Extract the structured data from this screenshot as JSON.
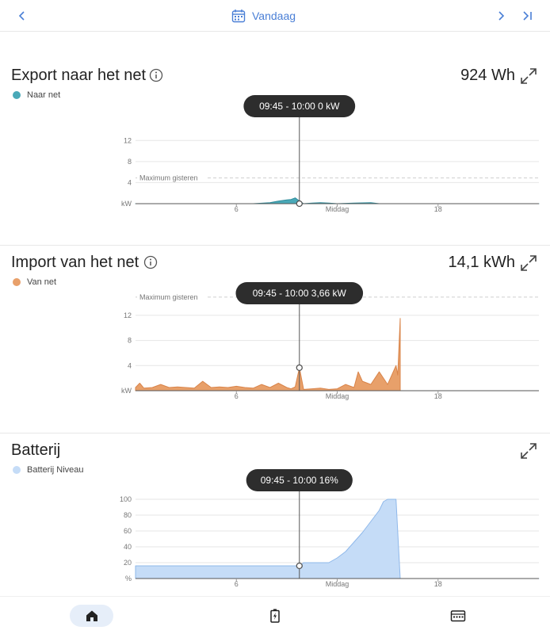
{
  "header": {
    "date_label": "Vandaag",
    "prev_icon": "chevron-left-icon",
    "next_icon": "chevron-right-icon",
    "last_icon": "skip-to-end-icon",
    "calendar_icon": "calendar-icon"
  },
  "colors": {
    "accent": "#4a7fd6",
    "export": "#4aa9b8",
    "import": "#e8a06a",
    "battery": "#c5dcf7"
  },
  "cards": {
    "export": {
      "title": "Export naar het net",
      "value": "924 Wh",
      "legend": "Naar net",
      "tooltip": "09:45 - 10:00 0 kW",
      "max_label": "Maximum gisteren"
    },
    "import": {
      "title": "Import van het net",
      "value": "14,1 kWh",
      "legend": "Van net",
      "tooltip": "09:45 - 10:00 3,66 kW",
      "max_label": "Maximum gisteren"
    },
    "battery": {
      "title": "Batterij",
      "legend": "Batterij Niveau",
      "tooltip": "09:45 - 10:00 16%"
    }
  },
  "chart_data": [
    {
      "type": "area",
      "series": [
        {
          "name": "Naar net",
          "x": [
            0,
            7,
            8,
            8.5,
            9,
            9.25,
            9.5,
            9.75,
            10,
            10.5,
            11,
            11.5,
            12,
            13,
            14,
            14.5,
            15,
            24
          ],
          "values": [
            0,
            0,
            0.2,
            0.5,
            0.7,
            0.8,
            1.1,
            0.5,
            0,
            0.1,
            0.2,
            0.1,
            0,
            0.1,
            0.2,
            0,
            0,
            0
          ]
        }
      ],
      "xticks": [
        "6",
        "Middag",
        "18"
      ],
      "yticks": [
        "kW",
        "4",
        "8",
        "12"
      ],
      "ylim": [
        0,
        14
      ],
      "reference": 4.9,
      "marker": {
        "x": 9.75,
        "y": 0
      }
    },
    {
      "type": "area",
      "series": [
        {
          "name": "Van net",
          "x": [
            0,
            0.25,
            0.5,
            1,
            1.5,
            2,
            2.5,
            3,
            3.5,
            4,
            4.5,
            5,
            5.5,
            6,
            6.5,
            7,
            7.5,
            8,
            8.5,
            9,
            9.25,
            9.5,
            9.75,
            10,
            10.5,
            11,
            11.5,
            12,
            12.5,
            13,
            13.25,
            13.5,
            14,
            14.5,
            14.75,
            15,
            15.25,
            15.5,
            15.6,
            15.75
          ],
          "values": [
            0.5,
            1.2,
            0.4,
            0.5,
            1.0,
            0.5,
            0.6,
            0.5,
            0.4,
            1.5,
            0.5,
            0.6,
            0.5,
            0.7,
            0.5,
            0.4,
            1.0,
            0.5,
            1.2,
            0.5,
            0.3,
            0.6,
            3.66,
            0.2,
            0.3,
            0.4,
            0.2,
            0.3,
            1.0,
            0.5,
            3.0,
            1.5,
            1.0,
            3.0,
            2.0,
            1.0,
            2.5,
            4.0,
            2.5,
            11.5
          ]
        }
      ],
      "xticks": [
        "6",
        "Middag",
        "18"
      ],
      "yticks": [
        "kW",
        "4",
        "8",
        "12"
      ],
      "ylim": [
        0,
        14
      ],
      "reference": 14.9,
      "marker": {
        "x": 9.75,
        "y": 3.66
      }
    },
    {
      "type": "area",
      "series": [
        {
          "name": "Batterij Niveau",
          "x": [
            0,
            9.75,
            10,
            11,
            11.5,
            12,
            12.5,
            13,
            13.5,
            14,
            14.5,
            14.75,
            15,
            15.25,
            15.5,
            15.75,
            16,
            24
          ],
          "values": [
            16,
            16,
            20,
            20,
            20,
            26,
            34,
            46,
            58,
            72,
            86,
            97,
            100,
            100,
            100,
            0,
            0,
            0
          ]
        }
      ],
      "xticks": [
        "6",
        "Middag",
        "18"
      ],
      "yticks": [
        "%",
        "20",
        "40",
        "60",
        "80",
        "100"
      ],
      "ylim": [
        0,
        100
      ],
      "marker": {
        "x": 9.75,
        "y": 16
      }
    }
  ]
}
